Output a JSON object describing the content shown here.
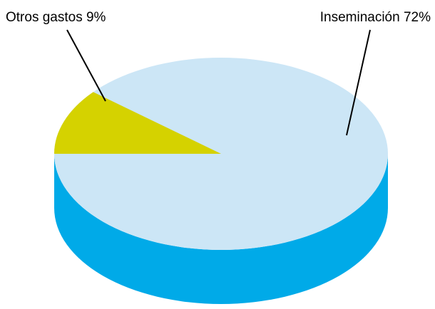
{
  "chart_data": {
    "type": "pie",
    "title": "",
    "style": "3d-cylinder",
    "slices": [
      {
        "label": "Inseminación 72%",
        "value": 72,
        "top_color": "#cce6f6",
        "side_color": "#00aae8"
      },
      {
        "label": "Otros gastos 9%",
        "value": 9,
        "top_color": "#d5d200",
        "side_color": "#aaa800"
      }
    ],
    "legend": "none"
  }
}
